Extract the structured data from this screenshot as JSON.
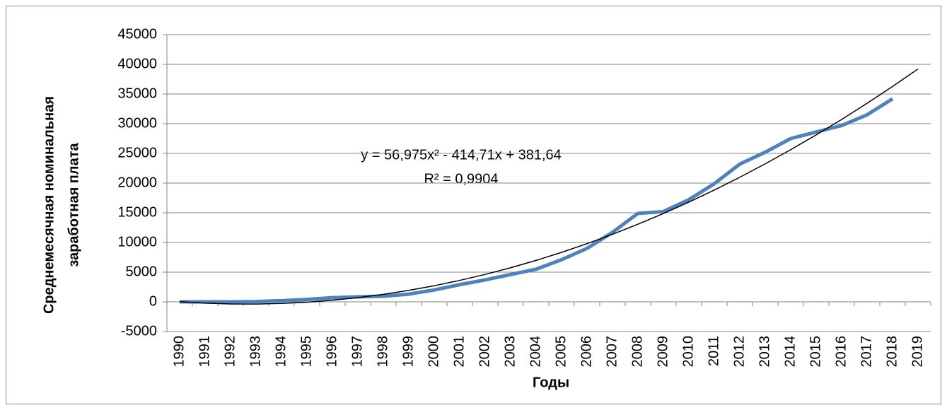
{
  "chart_data": {
    "type": "line",
    "ylabel": [
      "Среднемесячная номинальная",
      "заработная плата"
    ],
    "xlabel": "Годы",
    "annotations": [
      "y = 56,975x² - 414,71x + 381,64",
      "R² = 0,9904"
    ],
    "categories": [
      "1990",
      "1991",
      "1992",
      "1993",
      "1994",
      "1995",
      "1996",
      "1997",
      "1998",
      "1999",
      "2000",
      "2001",
      "2002",
      "2003",
      "2004",
      "2005",
      "2006",
      "2007",
      "2008",
      "2009",
      "2010",
      "2011",
      "2012",
      "2013",
      "2014",
      "2015",
      "2016",
      "2017",
      "2018",
      "2019"
    ],
    "series": [
      {
        "color": "#4f81bd",
        "values": [
          0,
          0,
          0,
          50,
          200,
          400,
          700,
          850,
          950,
          1300,
          2000,
          2900,
          3700,
          4600,
          5500,
          7100,
          9000,
          11700,
          14900,
          15200,
          17200,
          19900,
          23200,
          25200,
          27500,
          28600,
          29700,
          31500,
          34200,
          null
        ]
      }
    ],
    "trendline": {
      "color": "#000000",
      "values": [
        24,
        -220,
        -350,
        -366,
        -268,
        -56,
        270,
        710,
        1264,
        1932,
        2714,
        3610,
        4619,
        5743,
        6980,
        8332,
        9797,
        11377,
        13070,
        14877,
        16799,
        18834,
        20983,
        23246,
        25623,
        28114,
        30719,
        33438,
        36271,
        39218
      ]
    },
    "ylim": [
      -5000,
      45000
    ],
    "yticks": [
      -5000,
      0,
      5000,
      10000,
      15000,
      20000,
      25000,
      30000,
      35000,
      40000,
      45000
    ],
    "grid": true
  }
}
